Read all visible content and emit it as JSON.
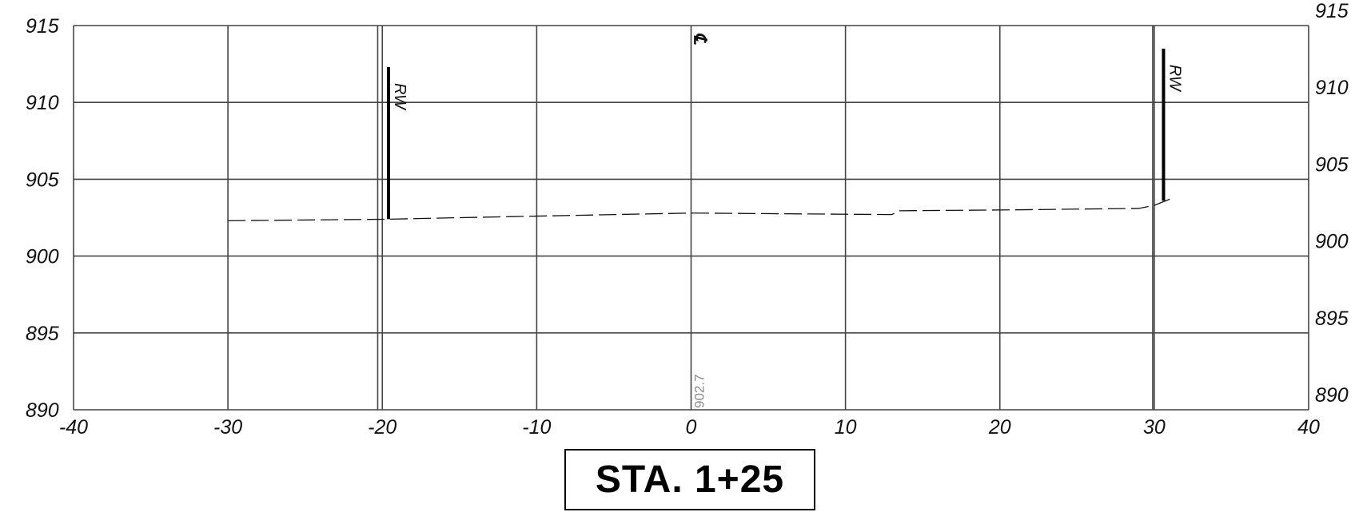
{
  "chart_data": {
    "type": "line",
    "title": "STA. 1+25",
    "xlim": [
      -40,
      40
    ],
    "ylim": [
      890,
      915
    ],
    "x_ticks": [
      -40,
      -30,
      -20,
      -10,
      0,
      10,
      20,
      30,
      40
    ],
    "x_tick_labels": [
      "-40",
      "-30",
      "-20",
      "-10",
      "0",
      "10",
      "20",
      "30",
      "40"
    ],
    "y_ticks": [
      890,
      895,
      900,
      905,
      910,
      915
    ],
    "y_tick_labels": [
      "890",
      "895",
      "900",
      "905",
      "910",
      "915"
    ],
    "grid": true,
    "series": [
      {
        "style": "dashed",
        "x": [
          -30,
          -19.6,
          -15,
          -10,
          0,
          13,
          13.5,
          20,
          29,
          30,
          31
        ],
        "y": [
          902.3,
          902.4,
          902.5,
          902.6,
          902.8,
          902.7,
          902.95,
          903.0,
          903.1,
          903.3,
          903.7
        ]
      }
    ],
    "right_of_way": [
      {
        "label": "RW",
        "x": -19.6,
        "y_bottom": 902.4,
        "y_top": 912.3
      },
      {
        "label": "RW",
        "x": 30.6,
        "y_bottom": 903.6,
        "y_top": 913.5
      }
    ],
    "extra_vertical_lines": [
      -20.3,
      29.9
    ],
    "centerline": {
      "label": "℄",
      "x": 0
    },
    "elevation_label": {
      "text": "902.7",
      "x": 0
    }
  },
  "station_label": "STA. 1+25",
  "colors": {
    "grid": "#444444",
    "profile": "#111111",
    "rw_line": "#000000",
    "elevation_text": "#8a8a8a"
  }
}
